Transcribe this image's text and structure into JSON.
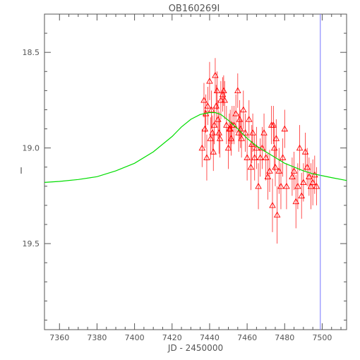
{
  "chart_data": {
    "type": "scatter",
    "title": "OB160269I",
    "xlabel": "JD - 2450000",
    "ylabel": "I",
    "xlim": [
      7352,
      7513
    ],
    "ylim": [
      19.95,
      18.3
    ],
    "y_inverted": true,
    "grid": false,
    "x_ticks": [
      "7360",
      "7380",
      "7400",
      "7420",
      "7440",
      "7460",
      "7480",
      "7500"
    ],
    "y_ticks": [
      "18.5",
      "19.0",
      "19.5"
    ],
    "colors": {
      "axes": "#555555",
      "points": "#ff0000",
      "model": "#00dd00",
      "marker_line": "#7777ff"
    },
    "vertical_line": {
      "x": 7499
    },
    "model": {
      "name": "",
      "x": [
        7352,
        7360,
        7370,
        7380,
        7390,
        7400,
        7410,
        7420,
        7425,
        7430,
        7435,
        7440,
        7443,
        7446,
        7450,
        7455,
        7460,
        7465,
        7470,
        7475,
        7480,
        7485,
        7490,
        7495,
        7500,
        7505,
        7513
      ],
      "y": [
        19.18,
        19.175,
        19.165,
        19.15,
        19.12,
        19.08,
        19.02,
        18.94,
        18.89,
        18.85,
        18.825,
        18.815,
        18.815,
        18.825,
        18.855,
        18.9,
        18.95,
        18.99,
        19.02,
        19.05,
        19.08,
        19.1,
        19.12,
        19.135,
        19.145,
        19.155,
        19.17
      ]
    },
    "points": {
      "name": "",
      "x": [
        7436,
        7437,
        7437.5,
        7438,
        7438.5,
        7439,
        7440,
        7440.5,
        7441,
        7441.5,
        7442,
        7442.5,
        7443,
        7443.5,
        7444,
        7444.5,
        7445,
        7445.5,
        7446,
        7447,
        7447.5,
        7448,
        7449,
        7450,
        7450.5,
        7451,
        7451.5,
        7452,
        7453,
        7454,
        7455,
        7455.5,
        7456,
        7456.5,
        7457,
        7458,
        7459,
        7460,
        7461,
        7462,
        7462.5,
        7463,
        7464,
        7465,
        7466,
        7467,
        7468,
        7469,
        7470,
        7471,
        7472,
        7473,
        7473.5,
        7474,
        7474.5,
        7475,
        7475.5,
        7476,
        7477,
        7478,
        7479,
        7480,
        7481,
        7484,
        7485,
        7486,
        7487,
        7488,
        7489,
        7490,
        7491,
        7492,
        7493,
        7494,
        7495,
        7496,
        7497
      ],
      "y": [
        19.0,
        18.75,
        18.9,
        18.82,
        19.05,
        18.78,
        18.65,
        18.95,
        18.8,
        18.92,
        19.02,
        18.88,
        18.62,
        18.78,
        18.7,
        18.85,
        18.92,
        18.95,
        18.75,
        18.72,
        18.7,
        18.75,
        18.88,
        19.0,
        18.9,
        18.9,
        18.95,
        18.88,
        18.88,
        18.82,
        18.7,
        18.92,
        18.85,
        18.9,
        18.95,
        18.8,
        18.92,
        19.05,
        18.85,
        19.1,
        18.98,
        18.92,
        19.05,
        19.0,
        19.2,
        19.05,
        19.0,
        18.92,
        19.05,
        19.15,
        19.12,
        18.88,
        19.3,
        18.88,
        19.0,
        19.1,
        18.95,
        19.35,
        19.12,
        19.2,
        19.05,
        18.9,
        19.2,
        19.15,
        19.12,
        19.28,
        19.2,
        19.0,
        19.25,
        19.18,
        19.02,
        19.1,
        19.15,
        19.2,
        19.18,
        19.14,
        19.2
      ],
      "err": [
        0.1,
        0.09,
        0.1,
        0.1,
        0.12,
        0.1,
        0.1,
        0.11,
        0.1,
        0.09,
        0.1,
        0.1,
        0.09,
        0.11,
        0.1,
        0.1,
        0.11,
        0.1,
        0.1,
        0.09,
        0.08,
        0.1,
        0.1,
        0.11,
        0.08,
        0.1,
        0.09,
        0.1,
        0.1,
        0.1,
        0.09,
        0.1,
        0.1,
        0.1,
        0.1,
        0.1,
        0.1,
        0.12,
        0.1,
        0.12,
        0.1,
        0.1,
        0.12,
        0.11,
        0.12,
        0.1,
        0.11,
        0.1,
        0.12,
        0.12,
        0.11,
        0.1,
        0.14,
        0.1,
        0.12,
        0.1,
        0.1,
        0.15,
        0.12,
        0.12,
        0.1,
        0.1,
        0.12,
        0.1,
        0.1,
        0.14,
        0.12,
        0.12,
        0.12,
        0.1,
        0.1,
        0.1,
        0.1,
        0.12,
        0.12,
        0.1,
        0.1
      ]
    }
  }
}
